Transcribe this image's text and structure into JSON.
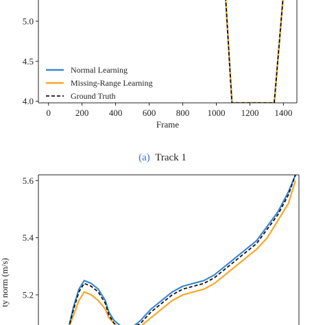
{
  "chart_data": [
    {
      "type": "line",
      "caption": {
        "letter": "(a)",
        "text": "Track 1"
      },
      "xlabel": "Frame",
      "ylabel": "",
      "xlim": [
        -60,
        1480
      ],
      "ylim": [
        3.98,
        5.3
      ],
      "xticks": [
        0,
        200,
        400,
        600,
        800,
        1000,
        1200,
        1400
      ],
      "yticks": [
        4.0,
        4.5,
        5.0
      ],
      "ytick_labels": [
        "4.0",
        "4.5",
        "5.0"
      ],
      "legend_position": "lower-left",
      "series": [
        {
          "name": "Normal Learning",
          "color": "#3a86d1",
          "style": "solid",
          "x": [
            1055,
            1093,
            1345,
            1398
          ],
          "y": [
            5.3,
            3.98,
            3.98,
            5.3
          ]
        },
        {
          "name": "Missing-Range Learning",
          "color": "#f5a623",
          "style": "solid",
          "x": [
            1055,
            1093,
            1345,
            1398
          ],
          "y": [
            5.3,
            3.98,
            3.98,
            5.3
          ]
        },
        {
          "name": "Ground Truth",
          "color": "#111111",
          "style": "dashed",
          "x": [
            1055,
            1093,
            1345,
            1398
          ],
          "y": [
            5.3,
            3.98,
            3.98,
            5.3
          ]
        }
      ]
    },
    {
      "type": "line",
      "xlabel": "",
      "ylabel": "ty norm (m/s)",
      "xlim": [
        0,
        1480
      ],
      "ylim": [
        5.08,
        5.62
      ],
      "yticks": [
        5.2,
        5.4,
        5.6
      ],
      "ytick_labels": [
        "5.2",
        "5.4",
        "5.6"
      ],
      "series": [
        {
          "name": "Normal Learning",
          "color": "#3a86d1",
          "style": "solid",
          "x": [
            170,
            200,
            230,
            260,
            300,
            340,
            380,
            400,
            430,
            470,
            520,
            580,
            640,
            700,
            760,
            820,
            880,
            940,
            1000,
            1060,
            1120,
            1180,
            1240,
            1300,
            1360,
            1420,
            1460
          ],
          "y": [
            5.08,
            5.16,
            5.22,
            5.25,
            5.24,
            5.22,
            5.18,
            5.14,
            5.11,
            5.09,
            5.08,
            5.11,
            5.15,
            5.18,
            5.21,
            5.23,
            5.24,
            5.25,
            5.27,
            5.3,
            5.33,
            5.36,
            5.39,
            5.44,
            5.49,
            5.56,
            5.62
          ]
        },
        {
          "name": "Missing-Range Learning",
          "color": "#f5a623",
          "style": "solid",
          "x": [
            170,
            200,
            230,
            260,
            300,
            340,
            380,
            400,
            430,
            470,
            520,
            580,
            640,
            700,
            760,
            820,
            880,
            940,
            1000,
            1060,
            1120,
            1180,
            1240,
            1300,
            1360,
            1420,
            1460
          ],
          "y": [
            5.08,
            5.13,
            5.18,
            5.21,
            5.2,
            5.18,
            5.15,
            5.12,
            5.1,
            5.08,
            5.08,
            5.09,
            5.12,
            5.15,
            5.18,
            5.2,
            5.21,
            5.22,
            5.24,
            5.27,
            5.3,
            5.33,
            5.36,
            5.4,
            5.46,
            5.52,
            5.6
          ]
        },
        {
          "name": "Ground Truth",
          "color": "#111111",
          "style": "dashed",
          "x": [
            170,
            200,
            230,
            260,
            300,
            340,
            380,
            400,
            430,
            470,
            520,
            580,
            640,
            700,
            760,
            820,
            880,
            940,
            1000,
            1060,
            1120,
            1180,
            1240,
            1300,
            1360,
            1420,
            1460
          ],
          "y": [
            5.08,
            5.15,
            5.21,
            5.24,
            5.23,
            5.21,
            5.17,
            5.13,
            5.1,
            5.08,
            5.08,
            5.1,
            5.14,
            5.17,
            5.2,
            5.22,
            5.23,
            5.24,
            5.26,
            5.29,
            5.32,
            5.35,
            5.38,
            5.43,
            5.48,
            5.55,
            5.62
          ]
        }
      ]
    }
  ]
}
